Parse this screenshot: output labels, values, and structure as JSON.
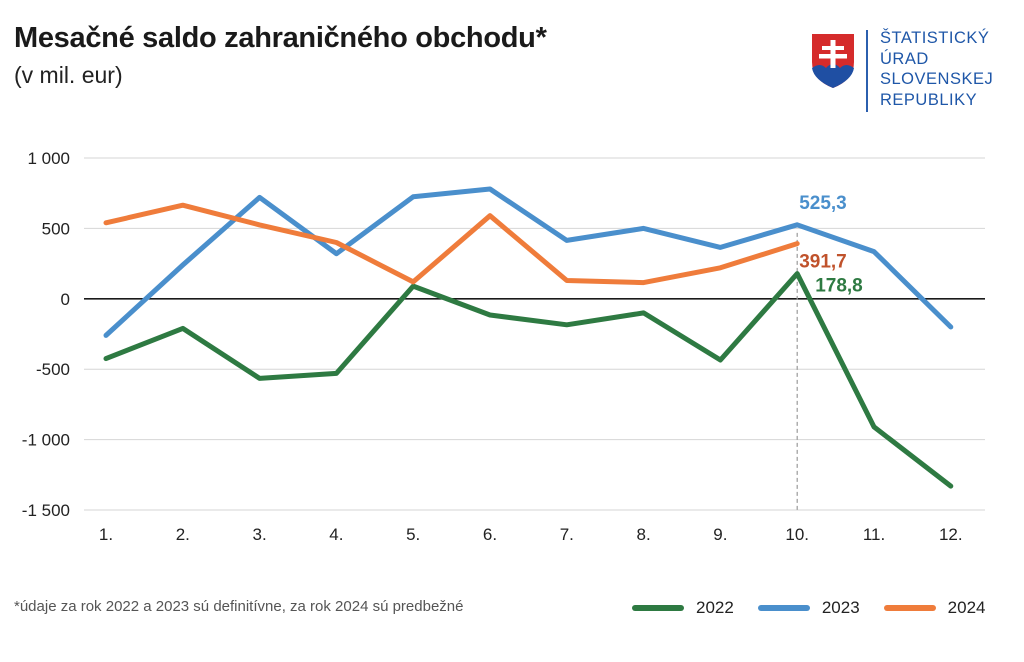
{
  "header": {
    "title": "Mesačné saldo zahraničného obchodu*",
    "subtitle": "(v mil. eur)"
  },
  "logo": {
    "lines": [
      "ŠTATISTICKÝ",
      "ÚRAD",
      "SLOVENSKEJ",
      "REPUBLIKY"
    ],
    "icon": "slovak-coat-of-arms-icon"
  },
  "footnote": "*údaje za rok 2022 a 2023 sú definitívne, za rok 2024 sú predbežné",
  "chart_data": {
    "type": "line",
    "title": "Mesačné saldo zahraničného obchodu*",
    "subtitle": "(v mil. eur)",
    "categories": [
      "1.",
      "2.",
      "3.",
      "4.",
      "5.",
      "6.",
      "7.",
      "8.",
      "9.",
      "10.",
      "11.",
      "12."
    ],
    "ylim": [
      -1500,
      1000
    ],
    "yticks": [
      1000,
      500,
      0,
      -500,
      -1000,
      -1500
    ],
    "ytick_labels": [
      "1 000",
      "500",
      "0",
      "-500",
      "-1 000",
      "-1 500"
    ],
    "grid": true,
    "legend_position": "bottom-right",
    "series": [
      {
        "name": "2022",
        "color": "#2e7a42",
        "values": [
          -425,
          -210,
          -565,
          -530,
          90,
          -115,
          -185,
          -100,
          -435,
          178.8,
          -910,
          -1330
        ]
      },
      {
        "name": "2023",
        "color": "#4a8fcc",
        "values": [
          -260,
          240,
          720,
          320,
          725,
          780,
          415,
          500,
          365,
          525.3,
          335,
          -200
        ]
      },
      {
        "name": "2024",
        "color": "#ef7c3b",
        "values": [
          540,
          665,
          525,
          400,
          120,
          590,
          130,
          115,
          220,
          391.7,
          null,
          null
        ]
      }
    ],
    "annotations": [
      {
        "series": "2023",
        "category": "10.",
        "label": "525,3",
        "color": "#4a8fcc"
      },
      {
        "series": "2024",
        "category": "10.",
        "label": "391,7",
        "color": "#c0522b"
      },
      {
        "series": "2022",
        "category": "10.",
        "label": "178,8",
        "color": "#2e7a42"
      }
    ],
    "reference_line": {
      "category": "10.",
      "style": "dashed"
    }
  }
}
